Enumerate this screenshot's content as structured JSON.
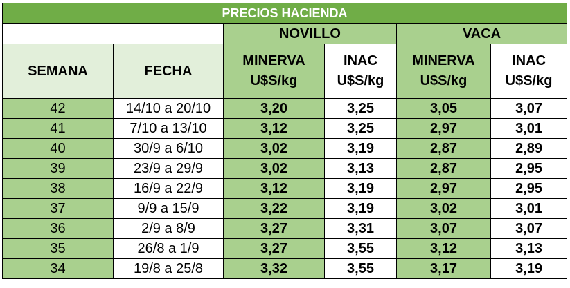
{
  "title": "PRECIOS HACIENDA",
  "groups": {
    "novillo": "NOVILLO",
    "vaca": "VACA"
  },
  "headers": {
    "semana": "SEMANA",
    "fecha": "FECHA",
    "novillo_minerva": "MINERVA\nU$S/kg",
    "novillo_inac": "INAC\nU$S/kg",
    "vaca_minerva": "MINERVA\nU$S/kg",
    "vaca_inac": "INAC\nU$S/kg"
  },
  "rows": [
    {
      "semana": "42",
      "fecha": "14/10 a 20/10",
      "novillo_minerva": "3,20",
      "novillo_inac": "3,25",
      "vaca_minerva": "3,05",
      "vaca_inac": "3,07"
    },
    {
      "semana": "41",
      "fecha": "7/10 a 13/10",
      "novillo_minerva": "3,12",
      "novillo_inac": "3,25",
      "vaca_minerva": "2,97",
      "vaca_inac": "3,01"
    },
    {
      "semana": "40",
      "fecha": "30/9 a 6/10",
      "novillo_minerva": "3,02",
      "novillo_inac": "3,19",
      "vaca_minerva": "2,87",
      "vaca_inac": "2,89"
    },
    {
      "semana": "39",
      "fecha": "23/9 a 29/9",
      "novillo_minerva": "3,02",
      "novillo_inac": "3,13",
      "vaca_minerva": "2,87",
      "vaca_inac": "2,95"
    },
    {
      "semana": "38",
      "fecha": "16/9 a 22/9",
      "novillo_minerva": "3,12",
      "novillo_inac": "3,19",
      "vaca_minerva": "2,97",
      "vaca_inac": "2,95"
    },
    {
      "semana": "37",
      "fecha": "9/9 a 15/9",
      "novillo_minerva": "3,22",
      "novillo_inac": "3,19",
      "vaca_minerva": "3,02",
      "vaca_inac": "3,01"
    },
    {
      "semana": "36",
      "fecha": "2/9 a 8/9",
      "novillo_minerva": "3,27",
      "novillo_inac": "3,31",
      "vaca_minerva": "3,07",
      "vaca_inac": "3,07"
    },
    {
      "semana": "35",
      "fecha": "26/8 a 1/9",
      "novillo_minerva": "3,27",
      "novillo_inac": "3,55",
      "vaca_minerva": "3,12",
      "vaca_inac": "3,13"
    },
    {
      "semana": "34",
      "fecha": "19/8 a 25/8",
      "novillo_minerva": "3,32",
      "novillo_inac": "3,55",
      "vaca_minerva": "3,17",
      "vaca_inac": "3,19"
    }
  ],
  "colors": {
    "title_bg": "#70ad47",
    "title_text": "#ffffff",
    "green_cell": "#a9d08e",
    "light_header": "#e2efda",
    "border": "#000000"
  }
}
